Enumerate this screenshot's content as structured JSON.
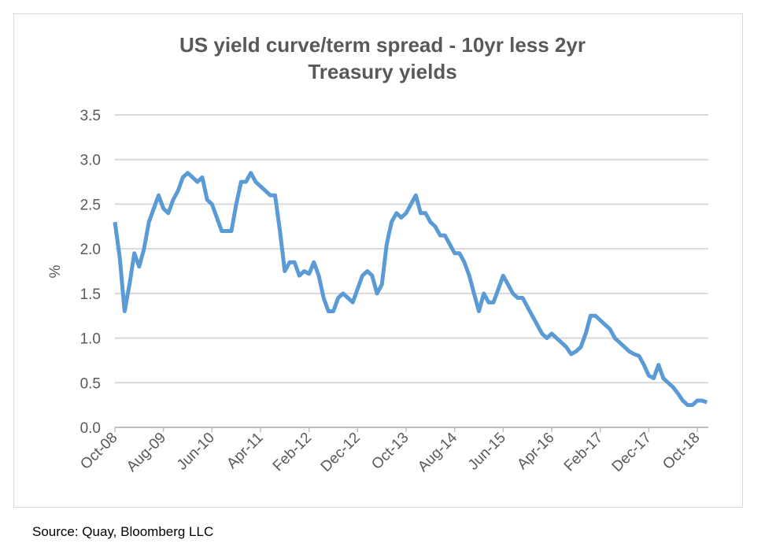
{
  "chart_data": {
    "type": "line",
    "title_line1": "US yield curve/term spread - 10yr less 2yr",
    "title_line2": "Treasury yields",
    "xlabel": "",
    "ylabel": "%",
    "ylim": [
      0,
      3.5
    ],
    "yticks": [
      "0.0",
      "0.5",
      "1.0",
      "1.5",
      "2.0",
      "2.5",
      "3.0",
      "3.5"
    ],
    "xticks": [
      "Oct-08",
      "Aug-09",
      "Jun-10",
      "Apr-11",
      "Feb-12",
      "Dec-12",
      "Oct-13",
      "Aug-14",
      "Jun-15",
      "Apr-16",
      "Feb-17",
      "Dec-17",
      "Oct-18"
    ],
    "grid": "horizontal",
    "line_color": "#5b9bd5",
    "start": "2008-10",
    "frequency": "monthly",
    "values": [
      2.3,
      1.9,
      1.3,
      1.6,
      1.95,
      1.8,
      2.0,
      2.3,
      2.45,
      2.6,
      2.45,
      2.4,
      2.55,
      2.65,
      2.8,
      2.85,
      2.8,
      2.75,
      2.8,
      2.55,
      2.5,
      2.35,
      2.2,
      2.2,
      2.2,
      2.5,
      2.75,
      2.75,
      2.85,
      2.75,
      2.7,
      2.65,
      2.6,
      2.6,
      2.2,
      1.75,
      1.85,
      1.85,
      1.7,
      1.75,
      1.72,
      1.85,
      1.7,
      1.45,
      1.3,
      1.3,
      1.45,
      1.5,
      1.45,
      1.4,
      1.55,
      1.7,
      1.75,
      1.7,
      1.5,
      1.6,
      2.05,
      2.3,
      2.4,
      2.35,
      2.4,
      2.5,
      2.6,
      2.4,
      2.4,
      2.3,
      2.25,
      2.15,
      2.15,
      2.05,
      1.95,
      1.95,
      1.85,
      1.7,
      1.5,
      1.3,
      1.5,
      1.4,
      1.4,
      1.55,
      1.7,
      1.6,
      1.5,
      1.45,
      1.45,
      1.35,
      1.25,
      1.15,
      1.05,
      1.0,
      1.05,
      1.0,
      0.95,
      0.9,
      0.82,
      0.85,
      0.9,
      1.05,
      1.25,
      1.25,
      1.2,
      1.15,
      1.1,
      1.0,
      0.95,
      0.9,
      0.85,
      0.82,
      0.8,
      0.7,
      0.58,
      0.55,
      0.7,
      0.55,
      0.5,
      0.45,
      0.38,
      0.3,
      0.25,
      0.25,
      0.3,
      0.3,
      0.28
    ]
  },
  "source": "Source: Quay, Bloomberg LLC"
}
